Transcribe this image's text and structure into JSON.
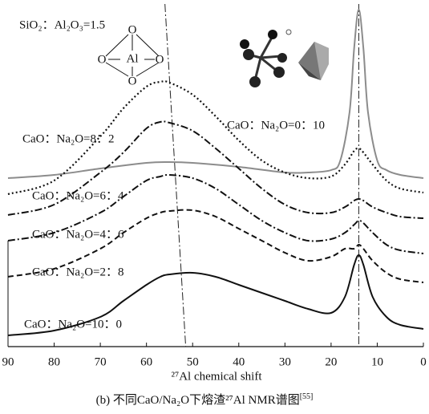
{
  "chart_data": {
    "type": "line",
    "xlabel": "²⁷Al chemical shift",
    "caption": "(b) 不同CaO/Na₂O下熔渣²⁷Al NMR谱图",
    "caption_ref": "[55]",
    "annotation": "SiO₂：Al₂O₃=1.5",
    "inset_labels": [
      "O",
      "O",
      "Al",
      "O",
      "O"
    ],
    "xlim": [
      90,
      0
    ],
    "xticks": [
      90,
      80,
      70,
      60,
      50,
      40,
      30,
      20,
      10,
      0
    ],
    "ylim": [
      0,
      430
    ],
    "guides": [
      {
        "x": [
          56,
          51.5
        ]
      },
      {
        "x": [
          14,
          14
        ]
      }
    ],
    "series": [
      {
        "name": "CaO：Na₂O=0：10",
        "color": "#8c8c8c",
        "linestyle": "solid",
        "x": [
          90,
          80,
          70,
          60,
          55,
          50,
          40,
          30,
          25,
          20,
          18,
          16,
          15,
          14,
          13,
          12,
          10,
          8,
          5,
          0
        ],
        "values": [
          210,
          214,
          222,
          229,
          230,
          229,
          224,
          217,
          217,
          220,
          232,
          292,
          372,
          420,
          372,
          292,
          232,
          220,
          214,
          210
        ]
      },
      {
        "name": "CaO：Na₂O=8：2",
        "color": "#111111",
        "linestyle": "dotted",
        "x": [
          90,
          80,
          70,
          65,
          60,
          57,
          55,
          50,
          45,
          40,
          35,
          30,
          25,
          20,
          17,
          15,
          14,
          13,
          11,
          8,
          5,
          0
        ],
        "values": [
          190,
          207,
          262,
          297,
          324,
          330,
          329,
          314,
          287,
          257,
          232,
          217,
          210,
          212,
          227,
          244,
          247,
          242,
          227,
          207,
          197,
          192
        ]
      },
      {
        "name": "CaO：Na₂O=6：4",
        "color": "#111111",
        "linestyle": "dashdot",
        "x": [
          90,
          80,
          70,
          65,
          60,
          57,
          55,
          50,
          45,
          40,
          35,
          30,
          25,
          20,
          17,
          15,
          14,
          13,
          11,
          8,
          5,
          0
        ],
        "values": [
          164,
          177,
          217,
          242,
          272,
          280,
          279,
          269,
          247,
          222,
          197,
          177,
          167,
          167,
          174,
          182,
          184,
          182,
          174,
          167,
          162,
          160
        ]
      },
      {
        "name": "CaO：Na₂O=4：6",
        "color": "#111111",
        "linestyle": "dashdot",
        "x": [
          90,
          80,
          70,
          65,
          60,
          57,
          55,
          50,
          45,
          40,
          35,
          30,
          25,
          20,
          17,
          15,
          14,
          13,
          11,
          8,
          5,
          0
        ],
        "values": [
          132,
          142,
          167,
          187,
          207,
          212,
          214,
          210,
          197,
          177,
          157,
          142,
          132,
          134,
          142,
          152,
          157,
          154,
          142,
          127,
          120,
          116
        ]
      },
      {
        "name": "CaO：Na₂O=2：8",
        "color": "#111111",
        "linestyle": "dashed",
        "x": [
          90,
          80,
          70,
          65,
          60,
          57,
          55,
          50,
          45,
          40,
          35,
          30,
          25,
          20,
          17,
          15,
          14,
          13,
          11,
          8,
          5,
          0
        ],
        "values": [
          87,
          97,
          122,
          142,
          160,
          167,
          169,
          170,
          162,
          147,
          132,
          117,
          107,
          112,
          122,
          122,
          127,
          122,
          107,
          92,
          84,
          80
        ]
      },
      {
        "name": "CaO：Na₂O=10：0",
        "color": "#111111",
        "linestyle": "solid",
        "x": [
          90,
          80,
          70,
          65,
          60,
          57,
          55,
          50,
          45,
          40,
          35,
          30,
          25,
          20,
          17,
          15,
          14,
          13,
          11,
          8,
          5,
          0
        ],
        "values": [
          14,
          20,
          37,
          57,
          77,
          87,
          90,
          92,
          87,
          77,
          67,
          57,
          47,
          42,
          62,
          102,
          114,
          102,
          62,
          37,
          27,
          22
        ]
      }
    ]
  }
}
